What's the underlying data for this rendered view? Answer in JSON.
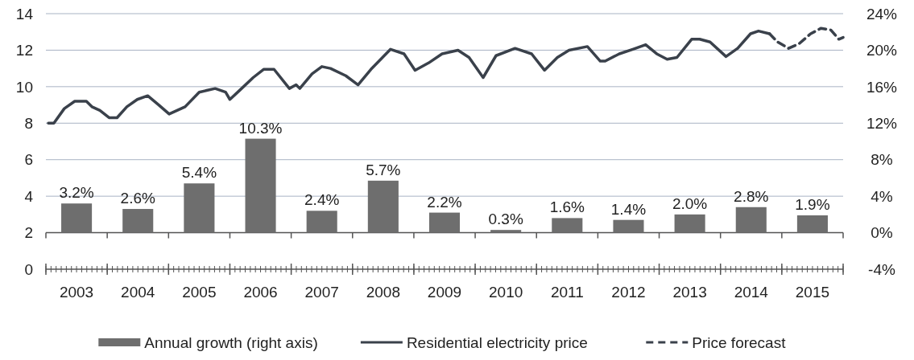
{
  "chart_data": {
    "type": "line",
    "xlim": [
      2003,
      2016
    ],
    "xticks": [
      {
        "value": 2003.5,
        "label": "2003"
      },
      {
        "value": 2004.5,
        "label": "2004"
      },
      {
        "value": 2005.5,
        "label": "2005"
      },
      {
        "value": 2006.5,
        "label": "2006"
      },
      {
        "value": 2007.5,
        "label": "2007"
      },
      {
        "value": 2008.5,
        "label": "2008"
      },
      {
        "value": 2009.5,
        "label": "2009"
      },
      {
        "value": 2010.5,
        "label": "2010"
      },
      {
        "value": 2011.5,
        "label": "2011"
      },
      {
        "value": 2012.5,
        "label": "2012"
      },
      {
        "value": 2013.5,
        "label": "2013"
      },
      {
        "value": 2014.5,
        "label": "2014"
      },
      {
        "value": 2015.5,
        "label": "2015"
      }
    ],
    "ylim": [
      0,
      14
    ],
    "yticks": [
      0,
      2,
      4,
      6,
      8,
      10,
      12,
      14
    ],
    "y2lim": [
      -4,
      24
    ],
    "y2ticks": [
      {
        "value": -4,
        "label": "-4%"
      },
      {
        "value": 0,
        "label": "0%"
      },
      {
        "value": 4,
        "label": "4%"
      },
      {
        "value": 8,
        "label": "8%"
      },
      {
        "value": 12,
        "label": "12%"
      },
      {
        "value": 16,
        "label": "16%"
      },
      {
        "value": 20,
        "label": "20%"
      },
      {
        "value": 24,
        "label": "24%"
      }
    ],
    "grid": "y",
    "legend": "bottom",
    "ref_lines": [
      {
        "axis": "y2",
        "value": 0,
        "color": "#555555"
      }
    ],
    "series": [
      {
        "name": "Annual growth (right axis)",
        "type": "bar",
        "axis": "y2",
        "color": "#6e6e6e",
        "x": [
          2003.5,
          2004.5,
          2005.5,
          2006.5,
          2007.5,
          2008.5,
          2009.5,
          2010.5,
          2011.5,
          2012.5,
          2013.5,
          2014.5,
          2015.5
        ],
        "values": [
          3.2,
          2.6,
          5.4,
          10.3,
          2.4,
          5.7,
          2.2,
          0.3,
          1.6,
          1.4,
          2.0,
          2.8,
          1.9
        ],
        "value_labels": [
          "3.2%",
          "2.6%",
          "5.4%",
          "10.3%",
          "2.4%",
          "5.7%",
          "2.2%",
          "0.3%",
          "1.6%",
          "1.4%",
          "2.0%",
          "2.8%",
          "1.9%"
        ]
      },
      {
        "name": "Residential electricity price",
        "line_style": "solid",
        "color": "#3a414b",
        "x": [
          2003.04,
          2003.13,
          2003.3,
          2003.47,
          2003.66,
          2003.75,
          2003.88,
          2004.03,
          2004.16,
          2004.32,
          2004.49,
          2004.66,
          2004.84,
          2005.01,
          2005.27,
          2005.5,
          2005.76,
          2005.93,
          2006.0,
          2006.16,
          2006.38,
          2006.55,
          2006.72,
          2006.97,
          2007.08,
          2007.14,
          2007.34,
          2007.5,
          2007.64,
          2007.89,
          2008.09,
          2008.3,
          2008.62,
          2008.84,
          2009.02,
          2009.24,
          2009.46,
          2009.72,
          2009.9,
          2010.13,
          2010.34,
          2010.65,
          2010.92,
          2011.13,
          2011.34,
          2011.53,
          2011.83,
          2012.04,
          2012.12,
          2012.35,
          2012.57,
          2012.78,
          2012.96,
          2013.13,
          2013.29,
          2013.53,
          2013.66,
          2013.83,
          2014.09,
          2014.28,
          2014.49,
          2014.62,
          2014.8
        ],
        "values": [
          8.0,
          8.0,
          8.8,
          9.2,
          9.2,
          8.9,
          8.7,
          8.3,
          8.3,
          8.9,
          9.3,
          9.5,
          9.0,
          8.5,
          8.9,
          9.7,
          9.9,
          9.7,
          9.3,
          9.8,
          10.5,
          10.95,
          10.95,
          9.9,
          10.1,
          9.9,
          10.7,
          11.1,
          11.0,
          10.6,
          10.1,
          10.95,
          12.05,
          11.8,
          10.9,
          11.3,
          11.8,
          12.0,
          11.6,
          10.5,
          11.7,
          12.1,
          11.8,
          10.9,
          11.6,
          12.0,
          12.2,
          11.4,
          11.4,
          11.8,
          12.05,
          12.3,
          11.8,
          11.5,
          11.6,
          12.6,
          12.6,
          12.45,
          11.65,
          12.1,
          12.9,
          13.05,
          12.9
        ]
      },
      {
        "name": "Price forecast",
        "line_style": "dashed",
        "color": "#3a414b",
        "x": [
          2014.8,
          2014.93,
          2015.11,
          2015.28,
          2015.47,
          2015.64,
          2015.8,
          2015.93,
          2016.0
        ],
        "values": [
          12.9,
          12.45,
          12.1,
          12.35,
          12.9,
          13.2,
          13.1,
          12.6,
          12.7
        ]
      }
    ]
  }
}
